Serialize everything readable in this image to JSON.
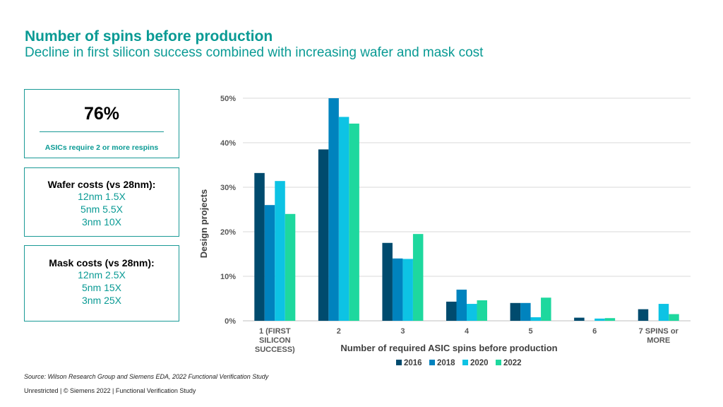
{
  "header": {
    "title": "Number of spins before production",
    "subtitle": "Decline in first silicon success combined with increasing wafer and mask cost"
  },
  "stat_box": {
    "value": "76%",
    "caption": "ASICs require 2 or more respins"
  },
  "wafer_box": {
    "heading": "Wafer costs (vs 28nm):",
    "lines": [
      "12nm 1.5X",
      "5nm 5.5X",
      "3nm 10X"
    ]
  },
  "mask_box": {
    "heading": "Mask costs (vs 28nm):",
    "lines": [
      "12nm 2.5X",
      "5nm 15X",
      "3nm 25X"
    ]
  },
  "source": "Source: Wilson Research Group and Siemens EDA, 2022 Functional Verification Study",
  "footer": "Unrestricted | © Siemens 2022 | Functional Verification Study",
  "chart_data": {
    "type": "bar",
    "xlabel": "Number of required ASIC spins before production",
    "ylabel": "Design projects",
    "ylim": [
      0,
      50
    ],
    "yticks": [
      "0%",
      "10%",
      "20%",
      "30%",
      "40%",
      "50%"
    ],
    "grid": true,
    "legend": "bottom",
    "categories": [
      [
        "1 (FIRST",
        "SILICON",
        "SUCCESS)"
      ],
      [
        "2"
      ],
      [
        "3"
      ],
      [
        "4"
      ],
      [
        "5"
      ],
      [
        "6"
      ],
      [
        "7 SPINS or",
        "MORE"
      ]
    ],
    "series": [
      {
        "name": "2016",
        "color": "#004b6e",
        "values": [
          33.2,
          38.5,
          17.5,
          4.3,
          4.0,
          0.7,
          2.6
        ]
      },
      {
        "name": "2018",
        "color": "#0083be",
        "values": [
          26.0,
          50.0,
          14.0,
          7.0,
          4.0,
          0.0,
          0.0
        ]
      },
      {
        "name": "2020",
        "color": "#0dc3e4",
        "values": [
          31.4,
          45.8,
          13.9,
          3.8,
          0.8,
          0.5,
          3.8
        ]
      },
      {
        "name": "2022",
        "color": "#1ed89e",
        "values": [
          24.0,
          44.3,
          19.5,
          4.6,
          5.2,
          0.6,
          1.5
        ]
      }
    ]
  }
}
